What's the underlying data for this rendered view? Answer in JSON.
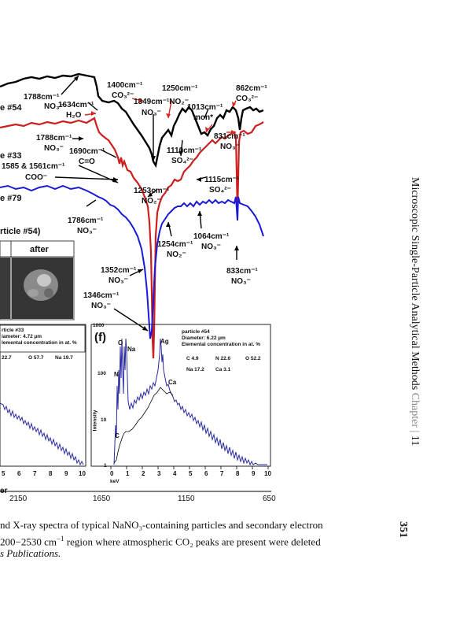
{
  "header": {
    "running_title": "Microscopic Single-Particle Analytical Methods",
    "chapter_word": "Chapter",
    "chapter_number": "11",
    "page_number": "351"
  },
  "spectra_labels": {
    "p54": "e #54",
    "p33": "e #33",
    "p79": "e #79",
    "img_title": "rticle #54)",
    "img_after": "after"
  },
  "ir_annotations": [
    {
      "id": "a1788a",
      "text": "1788cm⁻¹"
    },
    {
      "id": "a1788a2",
      "text": "NO₃⁻"
    },
    {
      "id": "a1634",
      "text": "1634cm⁻¹"
    },
    {
      "id": "a1634b",
      "text": "H₂O"
    },
    {
      "id": "a1400",
      "text": "1400cm⁻¹"
    },
    {
      "id": "a1400b",
      "text": "CO₃²⁻"
    },
    {
      "id": "a1349",
      "text": "1349cm⁻¹NO₂⁻"
    },
    {
      "id": "a1349b",
      "text": "NO₃⁻"
    },
    {
      "id": "a1250",
      "text": "1250cm⁻¹"
    },
    {
      "id": "a1013",
      "text": "1013cm⁻¹"
    },
    {
      "id": "a1013b",
      "text": "mon*"
    },
    {
      "id": "a862",
      "text": "862cm⁻¹"
    },
    {
      "id": "a862b",
      "text": "CO₃²⁻"
    },
    {
      "id": "a1788b",
      "text": "1788cm⁻¹"
    },
    {
      "id": "a1788b2",
      "text": "NO₃⁻"
    },
    {
      "id": "a1690",
      "text": "1690cm⁻¹"
    },
    {
      "id": "a1690b",
      "text": "C=O"
    },
    {
      "id": "a1585",
      "text": "1585 & 1561cm⁻¹"
    },
    {
      "id": "a1585b",
      "text": "COO⁻"
    },
    {
      "id": "a1110",
      "text": "1110cm⁻¹"
    },
    {
      "id": "a1110b",
      "text": "SO₄²⁻"
    },
    {
      "id": "a831",
      "text": "831cm⁻¹"
    },
    {
      "id": "a831b",
      "text": "NO₃⁻"
    },
    {
      "id": "a1115",
      "text": "1115cm⁻¹"
    },
    {
      "id": "a1115b",
      "text": "SO₄²⁻"
    },
    {
      "id": "a1253",
      "text": "1253cm⁻¹"
    },
    {
      "id": "a1253b",
      "text": "NO₂⁻"
    },
    {
      "id": "a1786",
      "text": "1786cm⁻¹"
    },
    {
      "id": "a1786b",
      "text": "NO₃⁻"
    },
    {
      "id": "a1254",
      "text": "1254cm⁻¹"
    },
    {
      "id": "a1254b",
      "text": "NO₂⁻"
    },
    {
      "id": "a1064",
      "text": "1064cm⁻¹"
    },
    {
      "id": "a1064b",
      "text": "NO₃⁻"
    },
    {
      "id": "a833",
      "text": "833cm⁻¹"
    },
    {
      "id": "a833b",
      "text": "NO₃⁻"
    },
    {
      "id": "a1352",
      "text": "1352cm⁻¹"
    },
    {
      "id": "a1352b",
      "text": "NO₃⁻"
    },
    {
      "id": "a1346",
      "text": "1346cm⁻¹"
    },
    {
      "id": "a1346b",
      "text": "NO₃⁻"
    }
  ],
  "ir_axis": {
    "ticks": [
      {
        "x_wn": 2150,
        "label": "2150"
      },
      {
        "x_wn": 1650,
        "label": "1650"
      },
      {
        "x_wn": 1150,
        "label": "1150"
      },
      {
        "x_wn": 650,
        "label": "650"
      }
    ],
    "left_label_fragment": "er"
  },
  "edx_left": {
    "info": [
      "rticle #33",
      "iameter: 4.72 µm",
      "lemental concentration in at. %"
    ],
    "values": [
      "22.7",
      "O 57.7",
      "Na 19.7"
    ],
    "ticks": [
      "5",
      "6",
      "7",
      "8",
      "9",
      "10"
    ]
  },
  "edx_right": {
    "panel_letter": "(f)",
    "info": [
      "particle #54",
      "Diameter: 6.22 µm",
      "Elemental concentration in at. %"
    ],
    "row1": [
      "C 4.9",
      "N 22.6",
      "O 52.2"
    ],
    "row2": [
      "Na 17.2",
      "Ca 3.1"
    ],
    "y_ticks": [
      "1000",
      "100",
      "10",
      "1"
    ],
    "y_label": "Intensity",
    "x_ticks": [
      "0",
      "1",
      "2",
      "3",
      "4",
      "5",
      "6",
      "7",
      "8",
      "9",
      "10"
    ],
    "x_label": "keV",
    "elements": [
      "O",
      "Na",
      "N",
      "C",
      "Ag",
      "Ca"
    ]
  },
  "caption": {
    "line1": "nd X-ray spectra of typical NaNO₃-containing particles and secondary electron",
    "line2_a": "200−2530 cm",
    "line2_sup": "−1",
    "line2_b": " region where atmospheric CO₂ peaks are present were deleted",
    "line3": "s Publications."
  }
}
